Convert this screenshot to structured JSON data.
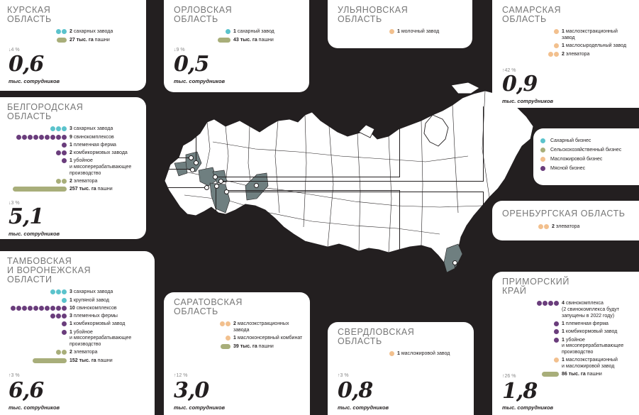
{
  "colors": {
    "sugar": "#5bc3cc",
    "agri": "#a8ae7a",
    "oil": "#f2c08e",
    "meat": "#6a3d7c",
    "highlight": "#6f7f80"
  },
  "regions": {
    "kursk": {
      "title": "КУРСКАЯ\nОБЛАСТЬ",
      "trend": "↓4 %",
      "value": "0,6",
      "unit": "тыс. сотрудников",
      "rows": [
        {
          "b": "2",
          "t": " сахарных завода"
        },
        {
          "b": "27 тыс. га",
          "t": " пашни"
        }
      ]
    },
    "orel": {
      "title": "ОРЛОВСКАЯ\nОБЛАСТЬ",
      "trend": "↓9 %",
      "value": "0,5",
      "unit": "тыс. сотрудников",
      "rows": [
        {
          "b": "1",
          "t": " сахарный завод"
        },
        {
          "b": "43 тыс. га",
          "t": " пашни"
        }
      ]
    },
    "ulyanovsk": {
      "title": "УЛЬЯНОВСКАЯ\nОБЛАСТЬ",
      "rows": [
        {
          "b": "1",
          "t": " молочный завод"
        }
      ]
    },
    "samara": {
      "title": "САМАРСКАЯ\nОБЛАСТЬ",
      "trend": "↑42 %",
      "value": "0,9",
      "unit": "тыс. сотрудников",
      "rows": [
        {
          "b": "1",
          "t": " маслоэкстракционный\nзавод"
        },
        {
          "b": "1",
          "t": " маслосыродельный завод"
        },
        {
          "b": "2",
          "t": " элеватора"
        }
      ]
    },
    "belgorod": {
      "title": "БЕЛГОРОДСКАЯ\nОБЛАСТЬ",
      "trend": "↓3 %",
      "value": "5,1",
      "unit": "тыс. сотрудников",
      "rows": [
        {
          "b": "3",
          "t": " сахарных завода"
        },
        {
          "b": "9",
          "t": " свинокомплексов"
        },
        {
          "b": "1",
          "t": " племенная ферма"
        },
        {
          "b": "2",
          "t": " комбикормовых завода"
        },
        {
          "b": "1",
          "t": " убойное\nи мясоперерабатывающее\nпроизводство"
        },
        {
          "b": "2",
          "t": " элеватора"
        },
        {
          "b": "257 тыс. га",
          "t": " пашни"
        }
      ]
    },
    "tambov": {
      "title": "ТАМБОВСКАЯ\nИ ВОРОНЕЖСКАЯ\nОБЛАСТИ",
      "trend": "↑3 %",
      "value": "6,6",
      "unit": "тыс. сотрудников",
      "rows": [
        {
          "b": "3",
          "t": " сахарных завода"
        },
        {
          "b": "1",
          "t": " крупяной завод"
        },
        {
          "b": "10",
          "t": " свинокомплексов"
        },
        {
          "b": "3",
          "t": " племенных фермы"
        },
        {
          "b": "1",
          "t": " комбикормовый завод"
        },
        {
          "b": "1",
          "t": " убойное\nи мясоперерабатывающее\nпроизводство"
        },
        {
          "b": "2",
          "t": " элеватора"
        },
        {
          "b": "152 тыс. га",
          "t": " пашни"
        }
      ]
    },
    "saratov": {
      "title": "САРАТОВСКАЯ\nОБЛАСТЬ",
      "trend": "↑12 %",
      "value": "3,0",
      "unit": "тыс. сотрудников",
      "rows": [
        {
          "b": "2",
          "t": " маслоэкстракционных\nзавода"
        },
        {
          "b": "1",
          "t": " маслоконсервный комбинат"
        },
        {
          "b": "39 тыс. га",
          "t": " пашни"
        }
      ]
    },
    "sverdlovsk": {
      "title": "СВЕРДЛОВСКАЯ\nОБЛАСТЬ",
      "trend": "↑3 %",
      "value": "0,8",
      "unit": "тыс. сотрудников",
      "rows": [
        {
          "b": "1",
          "t": " масложировой завод"
        }
      ]
    },
    "orenburg": {
      "title": "ОРЕНБУРГСКАЯ ОБЛАСТЬ",
      "rows": [
        {
          "b": "2",
          "t": " элеватора"
        }
      ]
    },
    "primorsky": {
      "title": "ПРИМОРСКИЙ\nКРАЙ",
      "trend": "↑26 %",
      "value": "1,8",
      "unit": "тыс. сотрудников",
      "rows": [
        {
          "b": "4",
          "t": " свинокомплекса\n(2 свинокомплекса будут\nзапущены в 2022 году)"
        },
        {
          "b": "1",
          "t": " племенная ферма"
        },
        {
          "b": "1",
          "t": " комбикормовый завод"
        },
        {
          "b": "1",
          "t": " убойное\nи мясоперерабатывающее\nпроизводство"
        },
        {
          "b": "1",
          "t": " маслоэкстракционный\nи масложировой завод"
        },
        {
          "b": "86 тыс. га",
          "t": " пашни"
        }
      ]
    }
  },
  "legend": [
    {
      "label": "Сахарный бизнес",
      "color": "#5bc3cc"
    },
    {
      "label": "Сельскохозяйственный бизнес",
      "color": "#a8ae7a"
    },
    {
      "label": "Масложировой бизнес",
      "color": "#f2c08e"
    },
    {
      "label": "Мясной бизнес",
      "color": "#6a3d7c"
    }
  ]
}
